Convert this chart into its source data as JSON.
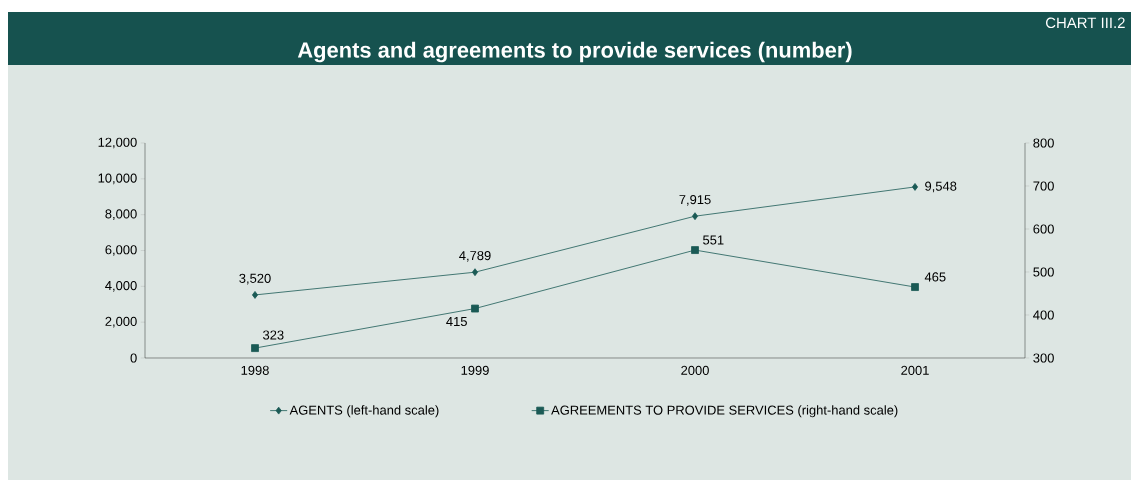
{
  "chart_data": {
    "type": "line",
    "title": "Agents and agreements to provide services (number)",
    "annotations": [
      "CHART III.2"
    ],
    "categories": [
      "1998",
      "1999",
      "2000",
      "2001"
    ],
    "series": [
      {
        "name": "AGENTS (left-hand scale)",
        "color": "#1a5a55",
        "marker": "diamond",
        "values": [
          3520,
          4789,
          7915,
          9548
        ],
        "value_labels": [
          "3,520",
          "4,789",
          "7,915",
          "9,548"
        ]
      },
      {
        "name": "AGREEMENTS TO PROVIDE SERVICES (right-hand scale)",
        "color": "#1a5a55",
        "marker": "square",
        "axis": "y2",
        "values": [
          323,
          415,
          551,
          465
        ],
        "value_labels": [
          "323",
          "415",
          "551",
          "465"
        ]
      }
    ],
    "ylim": [
      0,
      12000
    ],
    "yticks": [
      0,
      {
        "value": 2000,
        "label": "2,000"
      },
      {
        "value": 4000,
        "label": "4,000"
      },
      {
        "value": 6000,
        "label": "6,000"
      },
      {
        "value": 8000,
        "label": "8,000"
      },
      {
        "value": 10000,
        "label": "10,000"
      },
      {
        "value": 12000,
        "label": "12,000"
      }
    ],
    "y2lim": [
      300,
      800
    ],
    "y2ticks": [
      300,
      400,
      500,
      600,
      700,
      800
    ],
    "legend": "bottom",
    "line_style": "solid"
  }
}
